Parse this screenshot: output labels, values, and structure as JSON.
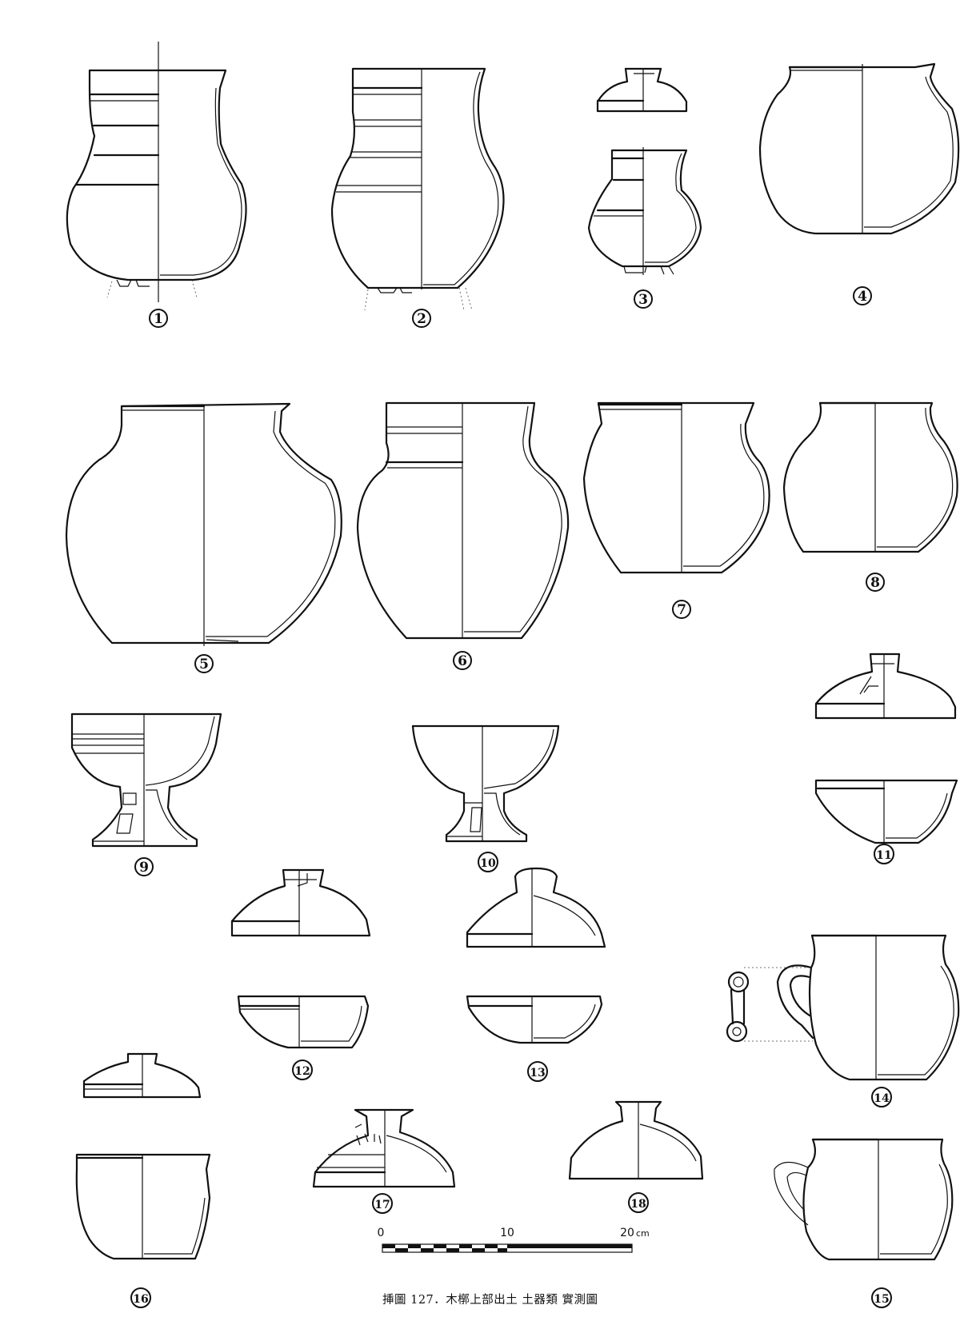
{
  "figure": {
    "caption": "挿圖 127．木槨上部出土 土器類 實測圖",
    "vessel_labels": [
      "1",
      "2",
      "3",
      "4",
      "5",
      "6",
      "7",
      "8",
      "9",
      "10",
      "11",
      "12",
      "13",
      "14",
      "15",
      "16",
      "17",
      "18"
    ],
    "scale_bar": {
      "ticks": [
        "0",
        "10",
        "20"
      ],
      "unit": "cm"
    }
  }
}
